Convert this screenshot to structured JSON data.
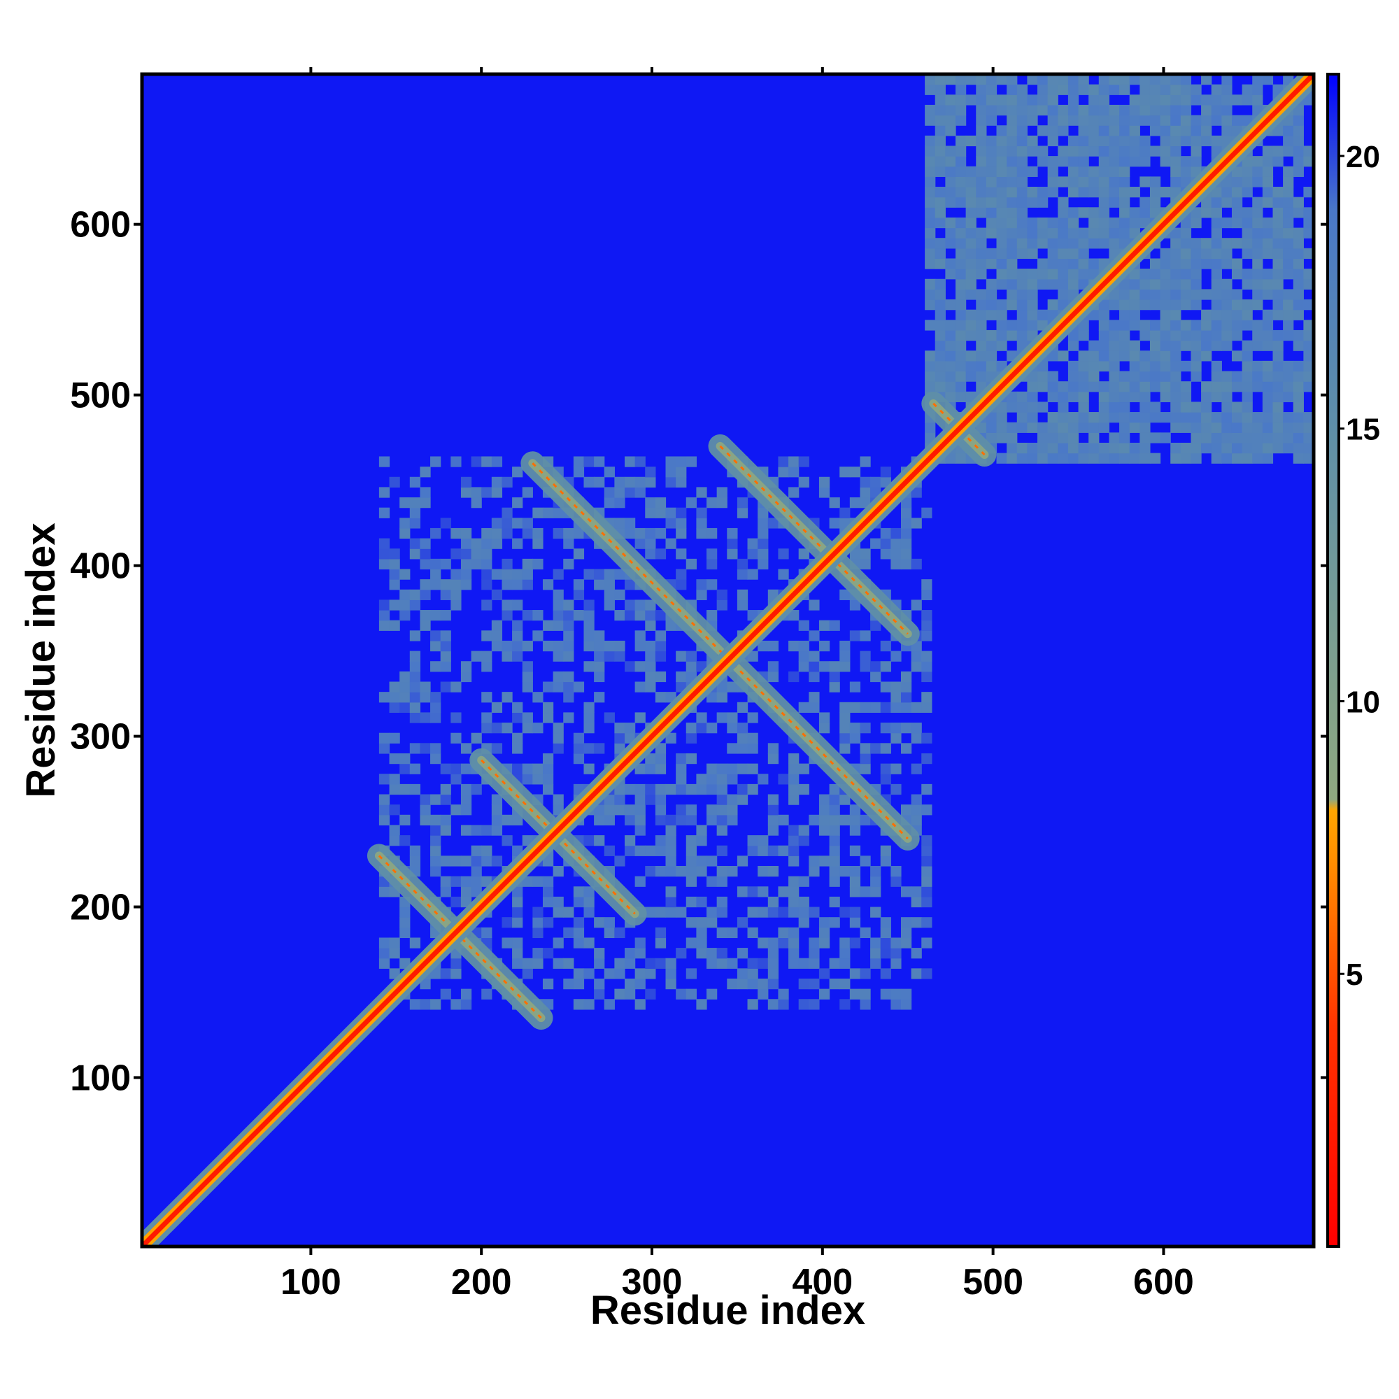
{
  "chart_data": {
    "type": "heatmap",
    "title": "",
    "xlabel": "Residue index",
    "ylabel": "Residue index",
    "xlim": [
      1,
      688
    ],
    "ylim": [
      1,
      688
    ],
    "x_ticks": [
      100,
      200,
      300,
      400,
      500,
      600
    ],
    "y_ticks": [
      100,
      200,
      300,
      400,
      500,
      600
    ],
    "x_tick_labels": [
      "100",
      "200",
      "300",
      "400",
      "500",
      "600"
    ],
    "y_tick_labels": [
      "100",
      "200",
      "300",
      "400",
      "500",
      "600"
    ],
    "colorbar": {
      "range": [
        0,
        21.5
      ],
      "ticks": [
        5,
        10,
        15,
        20
      ],
      "tick_labels": [
        "5",
        "10",
        "15",
        "20"
      ],
      "stops": [
        {
          "value": 0,
          "color": "#ff0000"
        },
        {
          "value": 4,
          "color": "#ff3300"
        },
        {
          "value": 7,
          "color": "#ff8c00"
        },
        {
          "value": 8,
          "color": "#ffa500"
        },
        {
          "value": 8.2,
          "color": "#8fa880"
        },
        {
          "value": 15,
          "color": "#5f8fa8"
        },
        {
          "value": 19,
          "color": "#4a78c8"
        },
        {
          "value": 21.5,
          "color": "#0000ff"
        }
      ]
    },
    "background_value": 21,
    "colors": {
      "background": "#0000ff",
      "contact_near": "#ff0000",
      "contact_mid": "#ff8c00",
      "contact_far": "#5f8fa8"
    },
    "features": [
      {
        "kind": "diagonal",
        "from": 1,
        "to": 688,
        "value": 2
      },
      {
        "kind": "block",
        "x": [
          460,
          688
        ],
        "y": [
          460,
          688
        ],
        "value": 16
      },
      {
        "kind": "block",
        "x": [
          140,
          460
        ],
        "y": [
          140,
          460
        ],
        "value": 17
      },
      {
        "kind": "antidiagonal_band",
        "center": 185,
        "span": [
          140,
          235
        ],
        "value": 9
      },
      {
        "kind": "antidiagonal_band",
        "center": 243,
        "span": [
          200,
          290
        ],
        "value": 9
      },
      {
        "kind": "antidiagonal_band",
        "center": 345,
        "span": [
          230,
          450
        ],
        "value": 8
      },
      {
        "kind": "antidiagonal_band",
        "center": 405,
        "span": [
          340,
          450
        ],
        "value": 9
      },
      {
        "kind": "antidiagonal_band",
        "center": 480,
        "span": [
          465,
          495
        ],
        "value": 8
      }
    ]
  }
}
